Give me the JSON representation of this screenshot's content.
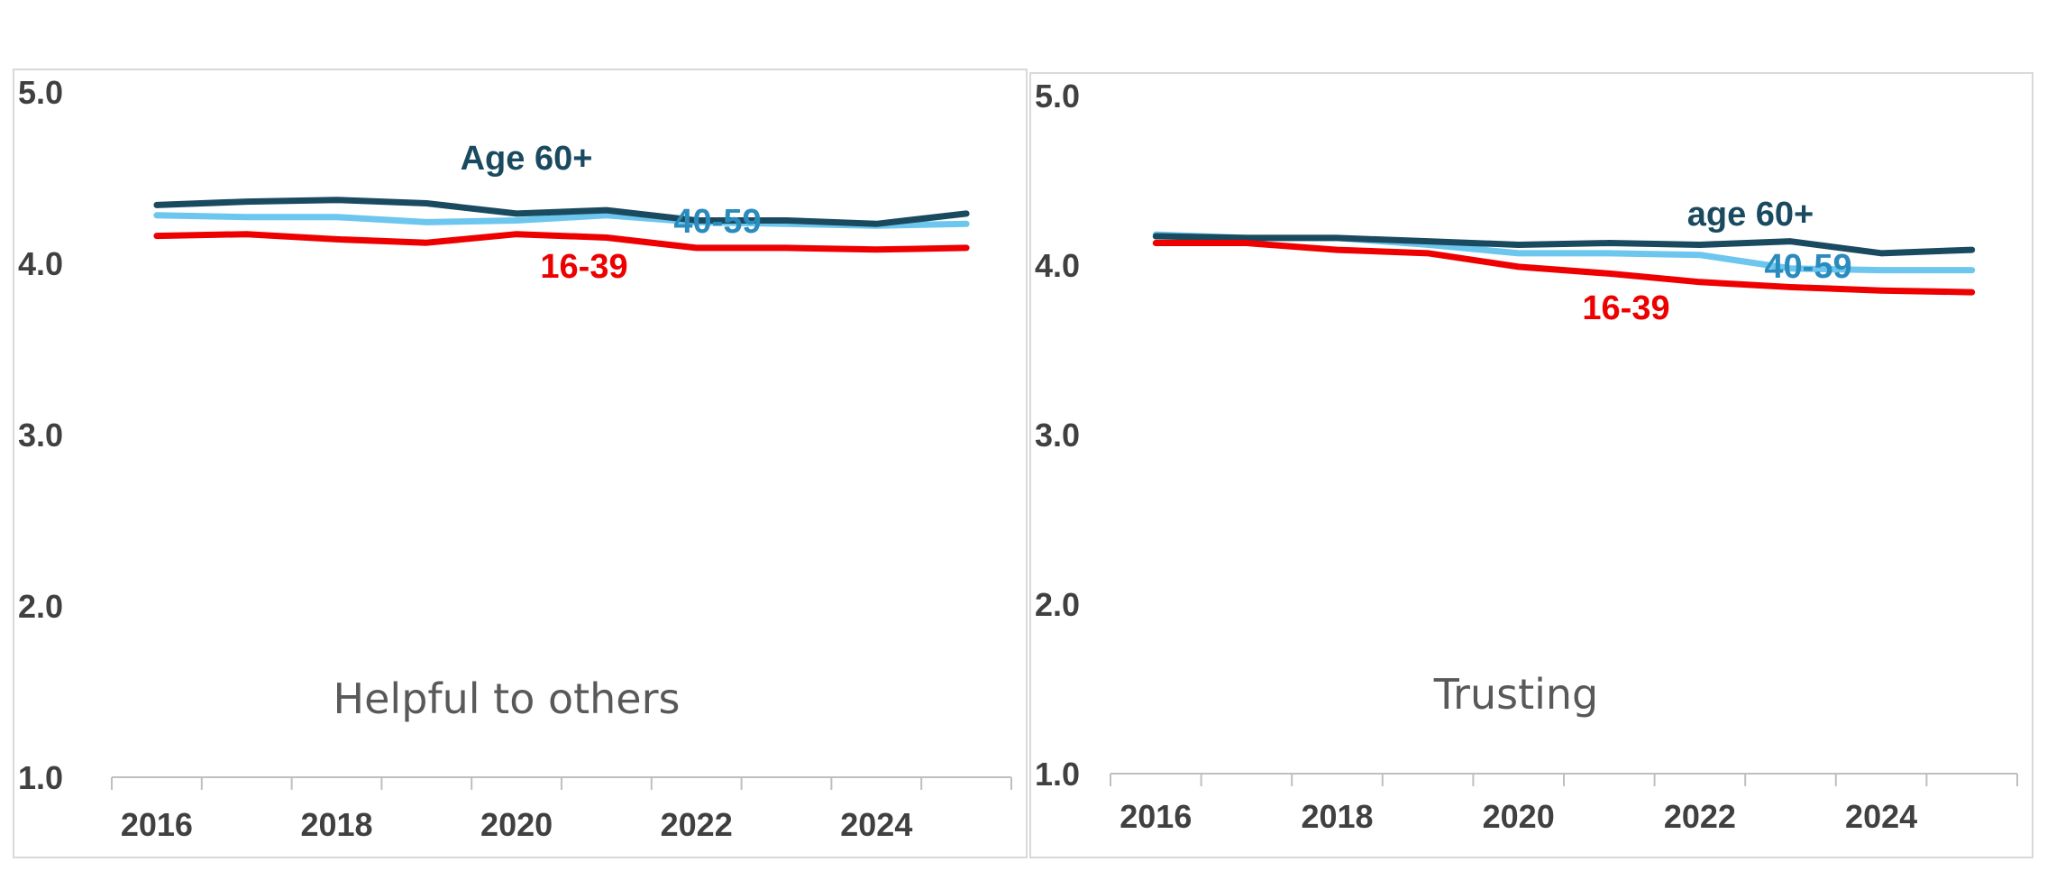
{
  "colors": {
    "age_60_plus": "#1a4a5f",
    "age_40_59": "#6cc6ee",
    "age_16_39": "#ee0000",
    "label_40_59": "#2a8bbd",
    "axis": "#bfbfbf",
    "tick_text": "#404040",
    "title_text": "#595959"
  },
  "chart_data": [
    {
      "type": "line",
      "title": "Helpful to others",
      "x": [
        2016,
        2017,
        2018,
        2019,
        2020,
        2021,
        2022,
        2023,
        2024,
        2025
      ],
      "xticks": [
        "2016",
        "2018",
        "2020",
        "2022",
        "2024"
      ],
      "yticks": [
        "1.0",
        "2.0",
        "3.0",
        "4.0",
        "5.0"
      ],
      "ylim": [
        1.0,
        5.0
      ],
      "xlim": [
        2015.5,
        2025.5
      ],
      "series": [
        {
          "name": "Age 60+",
          "label": "Age 60+",
          "values": [
            4.34,
            4.36,
            4.37,
            4.35,
            4.29,
            4.31,
            4.25,
            4.25,
            4.23,
            4.29
          ]
        },
        {
          "name": "40-59",
          "label": "40-59",
          "values": [
            4.28,
            4.27,
            4.27,
            4.24,
            4.25,
            4.28,
            4.24,
            4.23,
            4.22,
            4.23
          ]
        },
        {
          "name": "16-39",
          "label": "16-39",
          "values": [
            4.16,
            4.17,
            4.14,
            4.12,
            4.17,
            4.15,
            4.09,
            4.09,
            4.08,
            4.09
          ]
        }
      ]
    },
    {
      "type": "line",
      "title": "Trusting",
      "x": [
        2016,
        2017,
        2018,
        2019,
        2020,
        2021,
        2022,
        2023,
        2024,
        2025
      ],
      "xticks": [
        "2016",
        "2018",
        "2020",
        "2022",
        "2024"
      ],
      "yticks": [
        "1.0",
        "2.0",
        "3.0",
        "4.0",
        "5.0"
      ],
      "ylim": [
        1.0,
        5.0
      ],
      "xlim": [
        2015.5,
        2025.5
      ],
      "series": [
        {
          "name": "age 60+",
          "label": "age 60+",
          "values": [
            4.17,
            4.16,
            4.16,
            4.14,
            4.12,
            4.13,
            4.12,
            4.14,
            4.07,
            4.09
          ]
        },
        {
          "name": "40-59",
          "label": "40-59",
          "values": [
            4.18,
            4.16,
            4.16,
            4.12,
            4.07,
            4.07,
            4.06,
            3.98,
            3.97,
            3.97
          ]
        },
        {
          "name": "16-39",
          "label": "16-39",
          "values": [
            4.13,
            4.13,
            4.09,
            4.07,
            3.99,
            3.95,
            3.9,
            3.87,
            3.85,
            3.84
          ]
        }
      ]
    }
  ]
}
